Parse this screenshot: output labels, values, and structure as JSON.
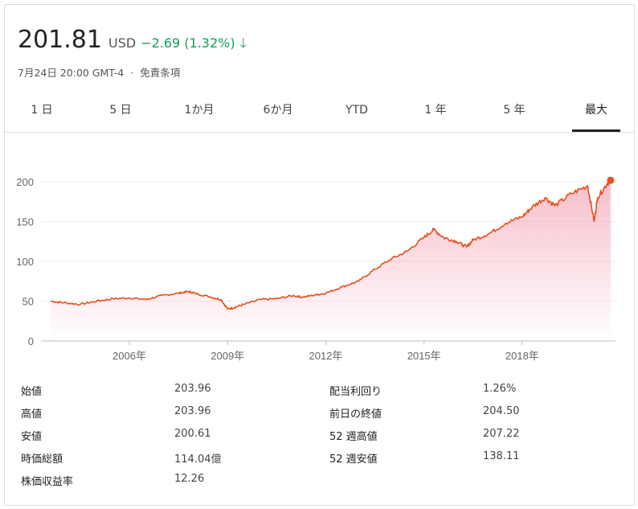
{
  "header": {
    "price": "201.81",
    "currency": "USD",
    "change": "−2.69 (1.32%)",
    "change_color": "#0f9d58",
    "arrow_icon": "arrow-down-icon",
    "arrow": "🡓",
    "timestamp": "7月24日 20:00 GMT-4",
    "separator": "·",
    "disclaimer": "免責条項"
  },
  "tabs": [
    {
      "label": "1 日"
    },
    {
      "label": "5 日"
    },
    {
      "label": "1か月"
    },
    {
      "label": "6か月"
    },
    {
      "label": "YTD"
    },
    {
      "label": "1 年"
    },
    {
      "label": "5 年"
    },
    {
      "label": "最大",
      "active": true
    }
  ],
  "chart_data": {
    "type": "area",
    "line_color": "#e8501f",
    "fill_color": "#f4a7b9",
    "ylim": [
      0,
      200
    ],
    "yticks": [
      0,
      50,
      100,
      150,
      200
    ],
    "ytick_labels": [
      "0",
      "50",
      "100",
      "150",
      "200"
    ],
    "xticks": [
      2006,
      2009,
      2012,
      2015,
      2018
    ],
    "xtick_labels": [
      "2006年",
      "2009年",
      "2012年",
      "2015年",
      "2018年"
    ],
    "x": [
      2003.6,
      2004.0,
      2004.5,
      2005.0,
      2005.5,
      2006.0,
      2006.5,
      2007.0,
      2007.5,
      2007.8,
      2008.0,
      2008.5,
      2008.8,
      2009.0,
      2009.2,
      2009.5,
      2010.0,
      2010.5,
      2011.0,
      2011.3,
      2011.7,
      2012.0,
      2012.5,
      2013.0,
      2013.5,
      2014.0,
      2014.5,
      2015.0,
      2015.3,
      2015.6,
      2016.0,
      2016.3,
      2016.5,
      2017.0,
      2017.5,
      2018.0,
      2018.3,
      2018.7,
      2019.0,
      2019.5,
      2020.0,
      2020.2,
      2020.3,
      2020.6,
      2020.7
    ],
    "values": [
      50,
      48,
      46,
      50,
      53,
      54,
      52,
      57,
      60,
      62,
      60,
      55,
      52,
      40,
      42,
      46,
      52,
      53,
      57,
      55,
      58,
      60,
      68,
      75,
      90,
      103,
      113,
      130,
      140,
      130,
      125,
      118,
      127,
      135,
      148,
      156,
      168,
      180,
      170,
      185,
      195,
      150,
      180,
      198,
      201.81
    ]
  },
  "stats": {
    "left": [
      {
        "label": "始値",
        "value": "203.96"
      },
      {
        "label": "高値",
        "value": "203.96"
      },
      {
        "label": "安値",
        "value": "200.61"
      },
      {
        "label": "時価総額",
        "value": "114.04億"
      },
      {
        "label": "株価収益率",
        "value": "12.26"
      }
    ],
    "right": [
      {
        "label": "配当利回り",
        "value": "1.26%"
      },
      {
        "label": "前日の終値",
        "value": "204.50"
      },
      {
        "label": "52 週高値",
        "value": "207.22"
      },
      {
        "label": "52 週安値",
        "value": "138.11"
      }
    ]
  }
}
